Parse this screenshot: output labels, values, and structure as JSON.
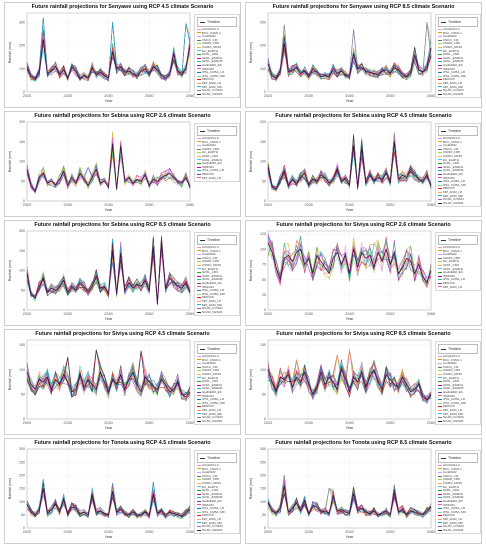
{
  "layout": {
    "columns": 2
  },
  "legend_header_label": "Timeline",
  "charts": [
    {
      "id": "senyawe_45",
      "title": "Future rainfall projections for Senyawe using RCP 4.5 climate Scenario",
      "xlabel": "Year",
      "ylabel": "Rainfall (mm)",
      "xlim": [
        2020,
        2060
      ],
      "ylim": [
        0,
        340
      ],
      "xticks": [
        2020,
        2030,
        2040,
        2050,
        2060
      ],
      "yticks": [
        0,
        100,
        200,
        300
      ],
      "series_names": [
        "ACCESS1-0",
        "BCC_CSM1.1",
        "CanESM2",
        "CMCC_CM",
        "CNRM_CM5",
        "CSIRO_MK36",
        "EC_EARTH",
        "GFDL_CM3",
        "GFDL_ESM2G",
        "GFDL_ESM2M",
        "HadGEM2_ES",
        "INMCM4",
        "IPSL_CM5A_LR",
        "IPSL_CM5A_MR",
        "MIROC5",
        "MPI_ESM_LR",
        "MPI_ESM_MR",
        "NCAR_CCSM4",
        "NCAR_CESM1"
      ],
      "base": [
        110,
        65,
        55,
        85,
        225,
        80,
        90,
        110,
        75,
        95,
        60,
        105,
        90,
        60,
        70,
        60,
        105,
        75,
        85,
        70,
        60,
        175,
        100,
        110,
        85,
        90,
        80,
        70,
        90,
        100,
        75,
        110,
        95,
        70,
        60,
        75,
        165,
        90,
        80,
        100,
        200
      ],
      "highlight": [
        {
          "x": 2024,
          "y": 320
        },
        {
          "x": 2041,
          "y": 300
        },
        {
          "x": 2059,
          "y": 295
        }
      ]
    },
    {
      "id": "senyawe_85",
      "title": "Future rainfall projections for Senyawe using RCP 8.5 climate Scenario",
      "xlabel": "Year",
      "ylabel": "Rainfall (mm)",
      "xlim": [
        2020,
        2060
      ],
      "ylim": [
        0,
        340
      ],
      "xticks": [
        2020,
        2030,
        2040,
        2050,
        2060
      ],
      "yticks": [
        0,
        100,
        200,
        300
      ],
      "series_names": [
        "ACCESS1-0",
        "BCC_CSM1.1",
        "CanESM2",
        "CMCC_CM",
        "CNRM_CM5",
        "CSIRO_MK36",
        "EC_EARTH",
        "GFDL_CM3",
        "GFDL_ESM2G",
        "GFDL_ESM2M",
        "HadGEM2_ES",
        "INMCM4",
        "IPSL_CM5A_LR",
        "IPSL_CM5A_MR",
        "MIROC5",
        "MPI_ESM_LR",
        "MPI_ESM_MR",
        "NCAR_CCSM4",
        "NCAR_CESM1"
      ],
      "base": [
        120,
        70,
        60,
        90,
        210,
        85,
        95,
        105,
        80,
        90,
        65,
        100,
        85,
        65,
        70,
        65,
        100,
        80,
        90,
        75,
        65,
        165,
        100,
        105,
        90,
        85,
        80,
        75,
        90,
        95,
        80,
        105,
        95,
        75,
        65,
        80,
        160,
        95,
        85,
        105,
        190
      ],
      "highlight": [
        {
          "x": 2024,
          "y": 290
        },
        {
          "x": 2041,
          "y": 270
        },
        {
          "x": 2059,
          "y": 300
        }
      ]
    },
    {
      "id": "sebina_26",
      "title": "Future rainfall projections for Sebina using RCP 2.6 climate Scenario",
      "xlabel": "Year",
      "ylabel": "Rainfall (mm)",
      "xlim": [
        2020,
        2060
      ],
      "ylim": [
        0,
        200
      ],
      "xticks": [
        2020,
        2030,
        2040,
        2050,
        2060
      ],
      "yticks": [
        0,
        50,
        100,
        150,
        200
      ],
      "series_names": [
        "ACCESS1-0",
        "BCC_CSM1.1",
        "CanESM2",
        "CNRM_CM5",
        "EC_EARTH",
        "GFDL_CM3",
        "GFDL_ESM2G",
        "HadGEM2_ES",
        "INMCM4",
        "IPSL_CM5A_LR",
        "MIROC5",
        "MPI_ESM_LR"
      ],
      "base": [
        80,
        40,
        25,
        60,
        70,
        45,
        50,
        40,
        55,
        75,
        40,
        60,
        45,
        70,
        55,
        40,
        60,
        80,
        45,
        50,
        35,
        145,
        30,
        140,
        50,
        60,
        45,
        55,
        50,
        65,
        40,
        55,
        50,
        60,
        65,
        70,
        60,
        50,
        45,
        60,
        35
      ],
      "highlight": [
        {
          "x": 2041,
          "y": 150
        },
        {
          "x": 2043,
          "y": 148
        },
        {
          "x": 2035,
          "y": 85
        }
      ]
    },
    {
      "id": "sebina_45",
      "title": "Future rainfall projections for Sebina using RCP 4.5 climate Scenario",
      "xlabel": "Year",
      "ylabel": "Rainfall (mm)",
      "xlim": [
        2020,
        2060
      ],
      "ylim": [
        0,
        200
      ],
      "xticks": [
        2020,
        2030,
        2040,
        2050,
        2060
      ],
      "yticks": [
        0,
        50,
        100,
        150,
        200
      ],
      "series_names": [
        "ACCESS1-0",
        "BCC_CSM1.1",
        "CanESM2",
        "CMCC_CM",
        "CNRM_CM5",
        "CSIRO_MK36",
        "EC_EARTH",
        "GFDL_CM3",
        "GFDL_ESM2G",
        "GFDL_ESM2M",
        "HadGEM2_ES",
        "INMCM4",
        "IPSL_CM5A_LR",
        "IPSL_CM5A_MR",
        "MIROC5",
        "MPI_ESM_LR",
        "MPI_ESM_MR",
        "NCAR_CCSM4",
        "NCAR_CESM1"
      ],
      "base": [
        85,
        35,
        30,
        55,
        75,
        40,
        55,
        45,
        60,
        70,
        40,
        55,
        50,
        65,
        60,
        45,
        55,
        80,
        50,
        55,
        40,
        140,
        35,
        135,
        45,
        65,
        50,
        60,
        55,
        70,
        45,
        150,
        55,
        65,
        60,
        75,
        65,
        55,
        50,
        65,
        40
      ],
      "highlight": [
        {
          "x": 2041,
          "y": 160
        },
        {
          "x": 2051,
          "y": 170
        },
        {
          "x": 2043,
          "y": 155
        }
      ]
    },
    {
      "id": "sebina_85",
      "title": "Future rainfall projections for Sebina using RCP 8.5 climate Scenario",
      "xlabel": "Year",
      "ylabel": "Rainfall (mm)",
      "xlim": [
        2020,
        2060
      ],
      "ylim": [
        0,
        200
      ],
      "xticks": [
        2020,
        2030,
        2040,
        2050,
        2060
      ],
      "yticks": [
        0,
        50,
        100,
        150,
        200
      ],
      "series_names": [
        "ACCESS1-0",
        "BCC_CSM1.1",
        "CanESM2",
        "CMCC_CM",
        "CNRM_CM5",
        "CSIRO_MK36",
        "EC_EARTH",
        "GFDL_CM3",
        "GFDL_ESM2G",
        "GFDL_ESM2M",
        "HadGEM2_ES",
        "INMCM4",
        "IPSL_CM5A_LR",
        "IPSL_CM5A_MR",
        "MIROC5",
        "MPI_ESM_LR",
        "MPI_ESM_MR",
        "NCAR_CCSM4",
        "NCAR_CESM1"
      ],
      "base": [
        90,
        40,
        30,
        60,
        80,
        45,
        55,
        50,
        60,
        75,
        45,
        60,
        50,
        70,
        60,
        45,
        60,
        85,
        55,
        60,
        40,
        150,
        40,
        145,
        50,
        70,
        55,
        65,
        60,
        75,
        50,
        160,
        15,
        170,
        55,
        80,
        70,
        60,
        55,
        70,
        45
      ],
      "highlight": [
        {
          "x": 2041,
          "y": 180
        },
        {
          "x": 2053,
          "y": 175
        },
        {
          "x": 2043,
          "y": 160
        }
      ]
    },
    {
      "id": "siviya_26",
      "title": "Future rainfall projections for Siviya using RCP 2.6 climate Scenario",
      "xlabel": "Year",
      "ylabel": "Rainfall (mm)",
      "xlim": [
        2020,
        2060
      ],
      "ylim": [
        0,
        130
      ],
      "xticks": [
        2020,
        2030,
        2040,
        2050,
        2060
      ],
      "yticks": [
        0,
        25,
        50,
        75,
        100,
        125
      ],
      "series_names": [
        "ACCESS1-0",
        "BCC_CSM1.1",
        "CanESM2",
        "CNRM_CM5",
        "EC_EARTH",
        "GFDL_CM3",
        "GFDL_ESM2G",
        "HadGEM2_ES",
        "INMCM4",
        "IPSL_CM5A_LR",
        "MIROC5",
        "MPI_ESM_LR"
      ],
      "base": [
        110,
        95,
        70,
        50,
        85,
        90,
        80,
        95,
        100,
        75,
        85,
        60,
        90,
        80,
        70,
        60,
        85,
        95,
        75,
        90,
        60,
        100,
        70,
        95,
        85,
        90,
        70,
        95,
        80,
        100,
        75,
        95,
        60,
        70,
        85,
        80,
        60,
        75,
        55,
        45,
        65
      ],
      "highlight": [
        {
          "x": 2024,
          "y": 110
        },
        {
          "x": 2046,
          "y": 108
        },
        {
          "x": 2055,
          "y": 105
        }
      ]
    },
    {
      "id": "siviya_45",
      "title": "Future rainfall projections for Siviya using RCP 4.5 climate Scenario",
      "xlabel": "Year",
      "ylabel": "Rainfall (mm)",
      "xlim": [
        2020,
        2060
      ],
      "ylim": [
        0,
        160
      ],
      "xticks": [
        2020,
        2030,
        2040,
        2050,
        2060
      ],
      "yticks": [
        0,
        50,
        100,
        150
      ],
      "series_names": [
        "ACCESS1-0",
        "BCC_CSM1.1",
        "CanESM2",
        "CMCC_CM",
        "CNRM_CM5",
        "CSIRO_MK36",
        "EC_EARTH",
        "GFDL_CM3",
        "GFDL_ESM2G",
        "GFDL_ESM2M",
        "HadGEM2_ES",
        "INMCM4",
        "IPSL_CM5A_LR",
        "IPSL_CM5A_MR",
        "MIROC5",
        "MPI_ESM_LR",
        "MPI_ESM_MR",
        "NCAR_CCSM4",
        "NCAR_CESM1"
      ],
      "base": [
        95,
        70,
        60,
        80,
        75,
        85,
        60,
        80,
        70,
        90,
        75,
        55,
        60,
        90,
        65,
        80,
        70,
        60,
        95,
        75,
        55,
        80,
        70,
        90,
        60,
        80,
        95,
        70,
        55,
        85,
        75,
        65,
        60,
        80,
        70,
        55,
        60,
        75,
        50,
        45,
        55
      ],
      "highlight": [
        {
          "x": 2037,
          "y": 140
        },
        {
          "x": 2048,
          "y": 138
        },
        {
          "x": 2030,
          "y": 125
        }
      ]
    },
    {
      "id": "siviya_85",
      "title": "Future rainfall projections for Siviya using RCP 8.5 climate Scenario",
      "xlabel": "Year",
      "ylabel": "Rainfall (mm)",
      "xlim": [
        2020,
        2060
      ],
      "ylim": [
        0,
        160
      ],
      "xticks": [
        2020,
        2030,
        2040,
        2050,
        2060
      ],
      "yticks": [
        0,
        50,
        100,
        150
      ],
      "series_names": [
        "ACCESS1-0",
        "BCC_CSM1.1",
        "CanESM2",
        "CMCC_CM",
        "CNRM_CM5",
        "CSIRO_MK36",
        "EC_EARTH",
        "GFDL_CM3",
        "GFDL_ESM2G",
        "GFDL_ESM2M",
        "HadGEM2_ES",
        "INMCM4",
        "IPSL_CM5A_LR",
        "IPSL_CM5A_MR",
        "MIROC5",
        "MPI_ESM_LR",
        "MPI_ESM_MR",
        "NCAR_CCSM4",
        "NCAR_CESM1"
      ],
      "base": [
        100,
        75,
        55,
        85,
        80,
        90,
        65,
        85,
        75,
        95,
        70,
        50,
        65,
        95,
        70,
        85,
        75,
        60,
        100,
        80,
        55,
        85,
        75,
        95,
        65,
        85,
        100,
        75,
        60,
        90,
        80,
        70,
        65,
        85,
        70,
        55,
        60,
        70,
        45,
        40,
        50
      ],
      "highlight": [
        {
          "x": 2040,
          "y": 140
        },
        {
          "x": 2037,
          "y": 130
        },
        {
          "x": 2027,
          "y": 120
        }
      ]
    },
    {
      "id": "tonota_45",
      "title": "Future rainfall projections for Tonota using RCP 4.5 climate Scenario",
      "xlabel": "Year",
      "ylabel": "Rainfall (mm)",
      "xlim": [
        2020,
        2060
      ],
      "ylim": [
        0,
        300
      ],
      "xticks": [
        2020,
        2030,
        2040,
        2050,
        2060
      ],
      "yticks": [
        0,
        50,
        100,
        150,
        200,
        250,
        300
      ],
      "series_names": [
        "ACCESS1-0",
        "BCC_CSM1.1",
        "CanESM2",
        "CMCC_CM",
        "CNRM_CM5",
        "CSIRO_MK36",
        "EC_EARTH",
        "GFDL_CM3",
        "GFDL_ESM2G",
        "GFDL_ESM2M",
        "HadGEM2_ES",
        "INMCM4",
        "IPSL_CM5A_LR",
        "IPSL_CM5A_MR",
        "MIROC5",
        "MPI_ESM_LR",
        "MPI_ESM_MR",
        "NCAR_CCSM4",
        "NCAR_CESM1"
      ],
      "base": [
        90,
        60,
        50,
        70,
        150,
        55,
        70,
        90,
        60,
        110,
        50,
        80,
        75,
        55,
        60,
        50,
        130,
        60,
        65,
        55,
        50,
        140,
        60,
        70,
        55,
        50,
        60,
        45,
        50,
        60,
        45,
        130,
        55,
        65,
        45,
        60,
        55,
        50,
        45,
        60,
        70
      ],
      "highlight": [
        {
          "x": 2024,
          "y": 185
        },
        {
          "x": 2051,
          "y": 175
        },
        {
          "x": 2041,
          "y": 170
        }
      ]
    },
    {
      "id": "tonota_85",
      "title": "Future rainfall projections for Tonota using RCP 8.5 climate Scenario",
      "xlabel": "Year",
      "ylabel": "Rainfall (mm)",
      "xlim": [
        2020,
        2060
      ],
      "ylim": [
        0,
        300
      ],
      "xticks": [
        2020,
        2030,
        2040,
        2050,
        2060
      ],
      "yticks": [
        0,
        50,
        100,
        150,
        200,
        250,
        300
      ],
      "series_names": [
        "ACCESS1-0",
        "BCC_CSM1.1",
        "CanESM2",
        "CMCC_CM",
        "CNRM_CM5",
        "CSIRO_MK36",
        "EC_EARTH",
        "GFDL_CM3",
        "GFDL_ESM2G",
        "GFDL_ESM2M",
        "HadGEM2_ES",
        "INMCM4",
        "IPSL_CM5A_LR",
        "IPSL_CM5A_MR",
        "MIROC5",
        "MPI_ESM_LR",
        "MPI_ESM_MR",
        "NCAR_CCSM4",
        "NCAR_CESM1"
      ],
      "base": [
        95,
        65,
        55,
        75,
        160,
        60,
        75,
        95,
        65,
        105,
        55,
        85,
        80,
        60,
        65,
        55,
        120,
        65,
        70,
        60,
        55,
        130,
        65,
        75,
        60,
        55,
        65,
        50,
        55,
        65,
        50,
        135,
        60,
        70,
        50,
        65,
        60,
        55,
        50,
        65,
        80
      ],
      "highlight": [
        {
          "x": 2024,
          "y": 200
        },
        {
          "x": 2051,
          "y": 165
        },
        {
          "x": 2035,
          "y": 150
        }
      ]
    }
  ],
  "palette": [
    "#f08ee0",
    "#c8a800",
    "#d9a0ff",
    "#6d6d6d",
    "#a2d94a",
    "#f5b342",
    "#49c6e5",
    "#2ca02c",
    "#c000c0",
    "#22bfa5",
    "#7a3b9a",
    "#f25c9a",
    "#1f77b4",
    "#8fd18f",
    "#e31a1c",
    "#ff9f5a",
    "#17becf",
    "#9467bd",
    "#2b2b2b"
  ]
}
